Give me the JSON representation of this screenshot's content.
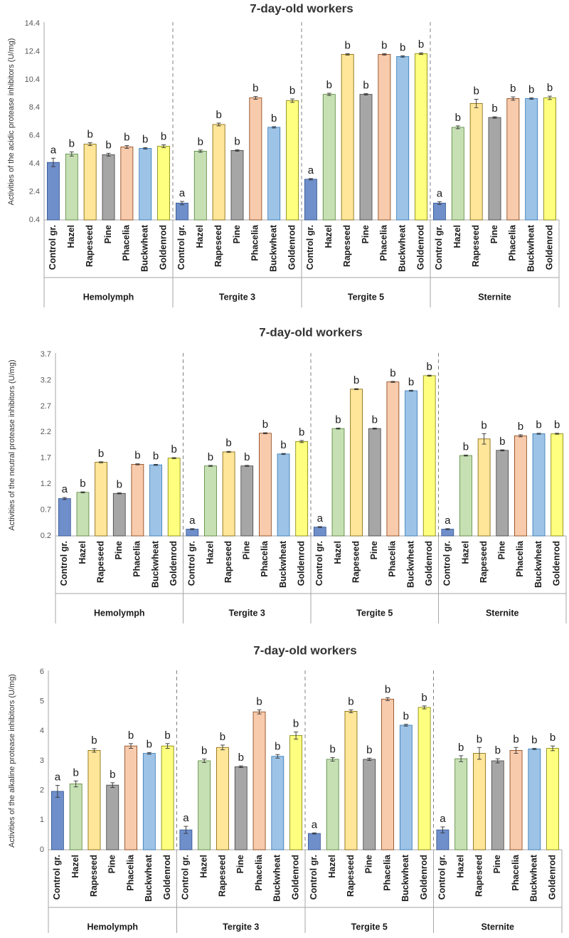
{
  "chart_data": [
    {
      "type": "bar",
      "title": "7-day-old workers",
      "ylabel": "Activities of the acidic protease inhibitors (U/mg)",
      "xlabel": "",
      "ylim": [
        0.4,
        14.4
      ],
      "yticks": [
        "0.4",
        "2.4",
        "4.4",
        "6.4",
        "8.4",
        "10.4",
        "12.4",
        "14.4"
      ],
      "categories": [
        "Control gr.",
        "Hazel",
        "Rapeseed",
        "Pine",
        "Phacelia",
        "Buckwheat",
        "Goldenrod"
      ],
      "groups": [
        {
          "name": "Hemolymph",
          "values": [
            4.5,
            5.1,
            5.8,
            5.05,
            5.6,
            5.5,
            5.65
          ],
          "errors": [
            0.3,
            0.15,
            0.1,
            0.1,
            0.1,
            0.05,
            0.1
          ],
          "letters": [
            "a",
            "b",
            "b",
            "b",
            "b",
            "b",
            "b"
          ]
        },
        {
          "name": "Tergite 3",
          "values": [
            1.6,
            5.3,
            7.2,
            5.35,
            9.1,
            7.0,
            8.9
          ],
          "errors": [
            0.12,
            0.08,
            0.1,
            0.05,
            0.1,
            0.05,
            0.12
          ],
          "letters": [
            "a",
            "b",
            "b",
            "b",
            "b",
            "b",
            "b"
          ]
        },
        {
          "name": "Tergite 5",
          "values": [
            3.3,
            9.35,
            12.2,
            9.35,
            12.2,
            12.05,
            12.25
          ],
          "errors": [
            0.05,
            0.08,
            0.05,
            0.05,
            0.05,
            0.05,
            0.06
          ],
          "letters": [
            "a",
            "b",
            "b",
            "b",
            "b",
            "b",
            "b"
          ]
        },
        {
          "name": "Sternite",
          "values": [
            1.6,
            7.0,
            8.7,
            7.7,
            9.05,
            9.05,
            9.1
          ],
          "errors": [
            0.1,
            0.1,
            0.3,
            0.05,
            0.12,
            0.05,
            0.12
          ],
          "letters": [
            "a",
            "b",
            "b",
            "b",
            "b",
            "b",
            "b"
          ]
        }
      ]
    },
    {
      "type": "bar",
      "title": "7-day-old workers",
      "ylabel": "Activities of the neutral  protease inhibitors (U/mg)",
      "xlabel": "",
      "ylim": [
        0.2,
        3.7
      ],
      "yticks": [
        "0.2",
        "0.7",
        "1.2",
        "1.7",
        "2.2",
        "2.7",
        "3.2",
        "3.7"
      ],
      "categories": [
        "Control gr.",
        "Hazel",
        "Rapeseed",
        "Pine",
        "Phacelia",
        "Buckwheat",
        "Goldenrod"
      ],
      "groups": [
        {
          "name": "Hemolymph",
          "values": [
            0.92,
            1.04,
            1.62,
            1.02,
            1.58,
            1.57,
            1.7
          ],
          "errors": [
            0.02,
            0.01,
            0.01,
            0.01,
            0.01,
            0.01,
            0.01
          ],
          "letters": [
            "a",
            "b",
            "b",
            "b",
            "b",
            "b",
            "b"
          ]
        },
        {
          "name": "Tergite 3",
          "values": [
            0.33,
            1.55,
            1.82,
            1.55,
            2.18,
            1.78,
            2.02
          ],
          "errors": [
            0.01,
            0.01,
            0.01,
            0.01,
            0.01,
            0.01,
            0.02
          ],
          "letters": [
            "a",
            "b",
            "b",
            "b",
            "b",
            "b",
            "b"
          ]
        },
        {
          "name": "Tergite 5",
          "values": [
            0.37,
            2.27,
            3.03,
            2.27,
            3.17,
            3.0,
            3.29
          ],
          "errors": [
            0.01,
            0.01,
            0.01,
            0.01,
            0.01,
            0.01,
            0.01
          ],
          "letters": [
            "a",
            "b",
            "b",
            "b",
            "b",
            "b",
            "b"
          ]
        },
        {
          "name": "Sternite",
          "values": [
            0.33,
            1.75,
            2.07,
            1.85,
            2.13,
            2.17,
            2.17
          ],
          "errors": [
            0.01,
            0.01,
            0.1,
            0.01,
            0.02,
            0.01,
            0.01
          ],
          "letters": [
            "a",
            "b",
            "b",
            "b",
            "b",
            "b",
            "b"
          ]
        }
      ]
    },
    {
      "type": "bar",
      "title": "7-day-old workers",
      "ylabel": "Activities of the alkaline  protease inhibitors  (U/mg)",
      "xlabel": "",
      "ylim": [
        0,
        6
      ],
      "yticks": [
        "0",
        "1",
        "2",
        "3",
        "4",
        "5",
        "6"
      ],
      "categories": [
        "Control gr.",
        "Hazel",
        "Rapeseed",
        "Pine",
        "Phacelia",
        "Buckwheat",
        "Goldenrod"
      ],
      "groups": [
        {
          "name": "Hemolymph",
          "values": [
            1.97,
            2.22,
            3.35,
            2.18,
            3.5,
            3.25,
            3.5
          ],
          "errors": [
            0.2,
            0.1,
            0.06,
            0.08,
            0.08,
            0.03,
            0.08
          ],
          "letters": [
            "a",
            "b",
            "b",
            "b",
            "b",
            "b",
            "b"
          ]
        },
        {
          "name": "Tergite 3",
          "values": [
            0.67,
            3.0,
            3.45,
            2.8,
            4.65,
            3.15,
            3.85
          ],
          "errors": [
            0.12,
            0.06,
            0.08,
            0.03,
            0.07,
            0.06,
            0.12
          ],
          "letters": [
            "a",
            "b",
            "b",
            "b",
            "b",
            "b",
            "b"
          ]
        },
        {
          "name": "Tergite 5",
          "values": [
            0.55,
            3.05,
            4.67,
            3.05,
            5.08,
            4.2,
            4.8
          ],
          "errors": [
            0.02,
            0.06,
            0.05,
            0.04,
            0.05,
            0.03,
            0.05
          ],
          "letters": [
            "a",
            "b",
            "b",
            "b",
            "b",
            "b",
            "b"
          ]
        },
        {
          "name": "Sternite",
          "values": [
            0.67,
            3.07,
            3.25,
            3.0,
            3.35,
            3.4,
            3.42
          ],
          "errors": [
            0.1,
            0.1,
            0.2,
            0.07,
            0.1,
            0.02,
            0.08
          ],
          "letters": [
            "a",
            "b",
            "b",
            "b",
            "b",
            "b",
            "b"
          ]
        }
      ]
    }
  ],
  "colors": {
    "bar_fills": [
      "#6f8fcb",
      "#c6e0b4",
      "#ffe699",
      "#a6a6a6",
      "#f8cbad",
      "#9dc3e6",
      "#ffff7f"
    ],
    "bar_strokes": [
      "#2f528f",
      "#548235",
      "#7f6000",
      "#404040",
      "#843c0c",
      "#2e75b6",
      "#7f7f00"
    ],
    "axis": "#a6a6a6",
    "divider": "#808080"
  }
}
